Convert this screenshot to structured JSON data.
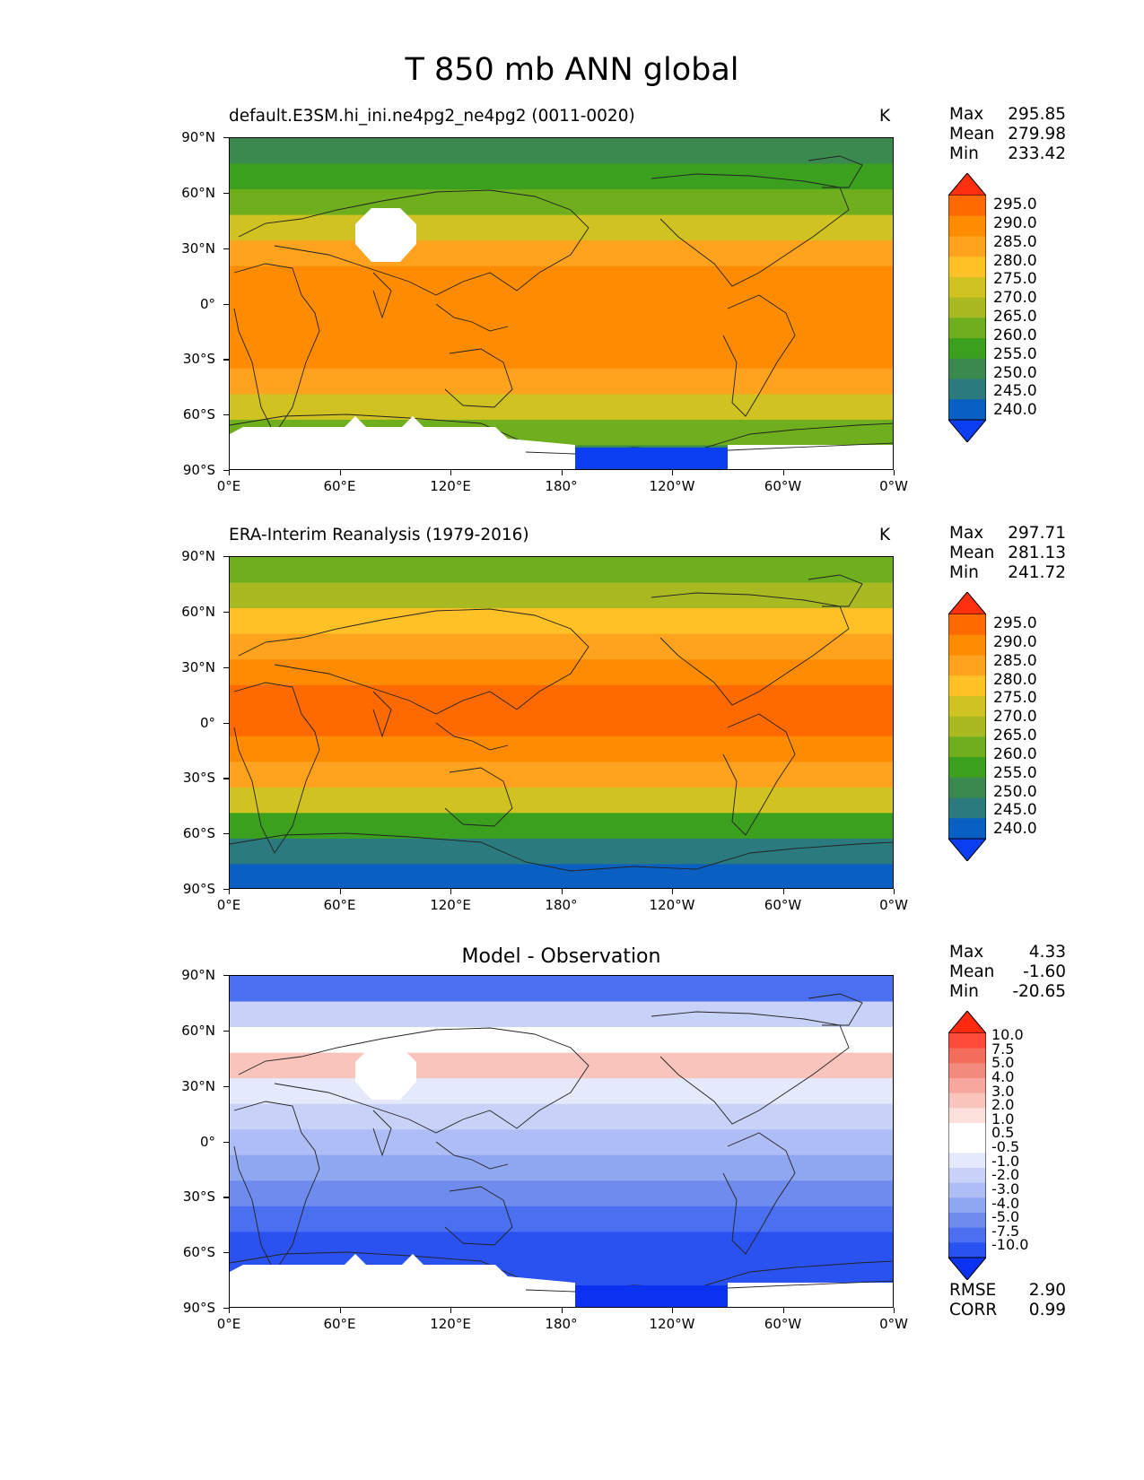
{
  "suptitle": "T 850 mb ANN global",
  "panels": [
    {
      "title_left": "default.E3SM.hi_ini.ne4pg2_ne4pg2 (0011-0020)",
      "title_center": "",
      "units": "K",
      "stats": {
        "max_label": "Max",
        "max": "295.85",
        "mean_label": "Mean",
        "mean": "279.98",
        "min_label": "Min",
        "min": "233.42"
      }
    },
    {
      "title_left": "ERA-Interim Reanalysis (1979-2016)",
      "title_center": "",
      "units": "K",
      "stats": {
        "max_label": "Max",
        "max": "297.71",
        "mean_label": "Mean",
        "mean": "281.13",
        "min_label": "Min",
        "min": "241.72"
      }
    },
    {
      "title_left": "",
      "title_center": "Model - Observation",
      "units": "",
      "stats": {
        "max_label": "Max",
        "max": "4.33",
        "mean_label": "Mean",
        "mean": "-1.60",
        "min_label": "Min",
        "min": "-20.65"
      },
      "rmse_label": "RMSE",
      "rmse": "2.90",
      "corr_label": "CORR",
      "corr": "0.99"
    }
  ],
  "axes": {
    "lat_ticks": [
      "90°N",
      "60°N",
      "30°N",
      "0°",
      "30°S",
      "60°S",
      "90°S"
    ],
    "lon_ticks": [
      "0°E",
      "60°E",
      "120°E",
      "180°",
      "120°W",
      "60°W",
      "0°W"
    ]
  },
  "colorbar_abs": {
    "labels": [
      "295.0",
      "290.0",
      "285.0",
      "280.0",
      "275.0",
      "270.0",
      "265.0",
      "260.0",
      "255.0",
      "250.0",
      "245.0",
      "240.0"
    ],
    "colors": [
      "#ff3010",
      "#ff6a00",
      "#ff8c00",
      "#ffa21e",
      "#ffc126",
      "#cfc221",
      "#a8b921",
      "#6fae1d",
      "#3aa01e",
      "#3a8a50",
      "#2a7a7e",
      "#0a5fc2",
      "#0a3ef0"
    ]
  },
  "colorbar_diff": {
    "labels": [
      "10.0",
      "7.5",
      "5.0",
      "4.0",
      "3.0",
      "2.0",
      "1.0",
      "0.5",
      "-0.5",
      "-1.0",
      "-2.0",
      "-3.0",
      "-4.0",
      "-5.0",
      "-7.5",
      "-10.0"
    ],
    "colors": [
      "#ff2a10",
      "#ff4a3a",
      "#f46c5c",
      "#f38a7e",
      "#f6a89e",
      "#f8c4bc",
      "#fbe0db",
      "#ffffff",
      "#ffffff",
      "#e4e9fb",
      "#c8d2f8",
      "#aebdf5",
      "#8fa6f1",
      "#6e8cee",
      "#4a6ff0",
      "#2a52f0",
      "#0a32f0"
    ]
  },
  "map_fields": {
    "abs_model": [
      "#3a8a50",
      "#3aa01e",
      "#6fae1d",
      "#cfc221",
      "#ffa21e",
      "#ff8c00",
      "#ff8c00",
      "#ff8c00",
      "#ff8c00",
      "#ffa21e",
      "#cfc221",
      "#6fae1d",
      "#3a8a50"
    ],
    "abs_obs": [
      "#6fae1d",
      "#a8b921",
      "#ffc126",
      "#ffa21e",
      "#ff8c00",
      "#ff6a00",
      "#ff6a00",
      "#ff8c00",
      "#ffa21e",
      "#cfc221",
      "#3aa01e",
      "#2a7a7e",
      "#0a5fc2"
    ],
    "diff": [
      "#4a6ff0",
      "#c8d2f8",
      "#ffffff",
      "#f8c4bc",
      "#e4e9fb",
      "#c8d2f8",
      "#aebdf5",
      "#8fa6f1",
      "#6e8cee",
      "#4a6ff0",
      "#2a52f0",
      "#2a52f0",
      "#2a52f0"
    ]
  }
}
